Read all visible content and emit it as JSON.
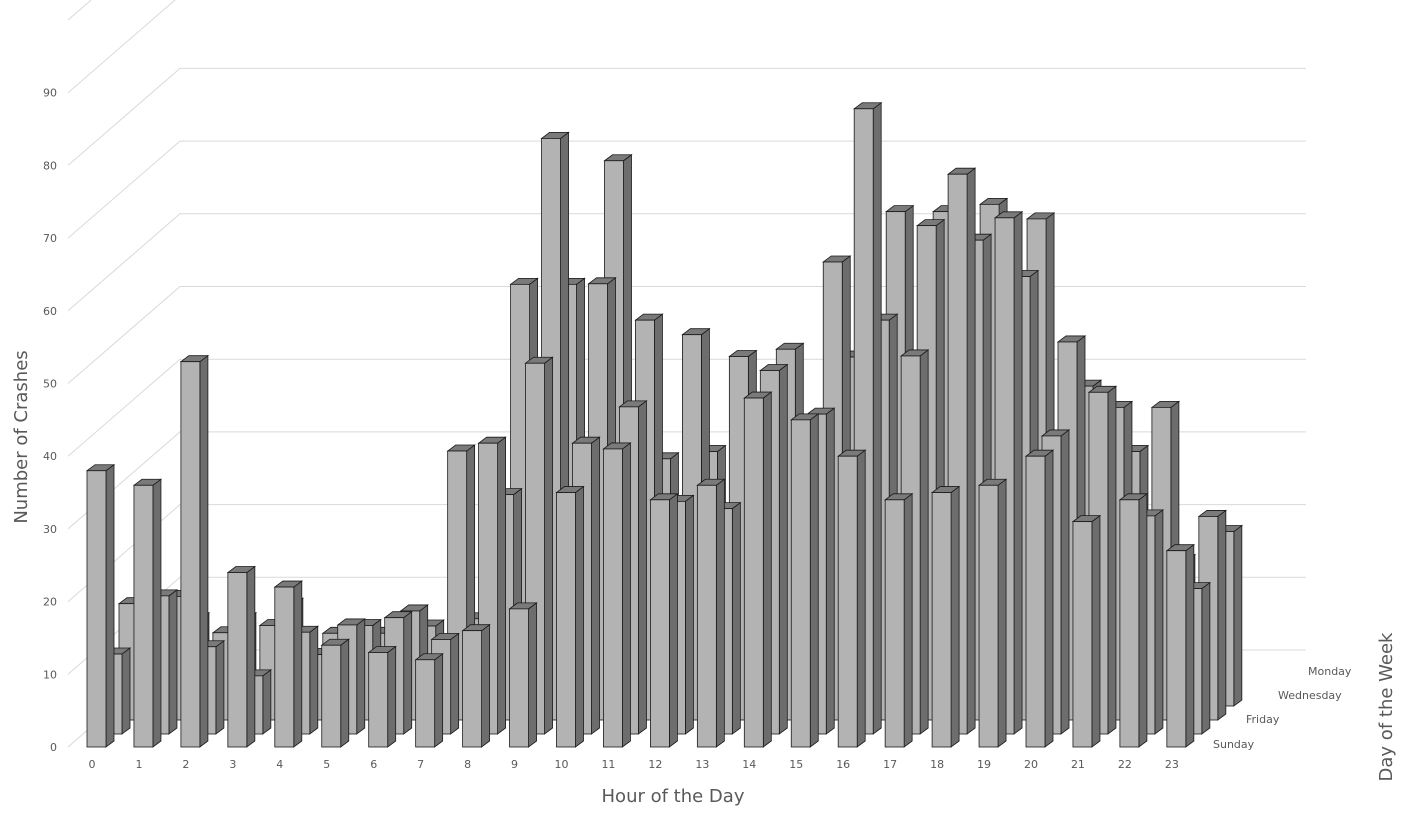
{
  "chart_data": {
    "type": "bar",
    "style": "3d-column",
    "xlabel": "Hour of the Day",
    "ylabel": "Number of Crashes",
    "zlabel": "Day of the Week",
    "categories": [
      "0",
      "1",
      "2",
      "3",
      "4",
      "5",
      "6",
      "7",
      "8",
      "9",
      "10",
      "11",
      "12",
      "13",
      "14",
      "15",
      "16",
      "17",
      "18",
      "19",
      "20",
      "21",
      "22",
      "23"
    ],
    "ytick_labels": [
      "0",
      "10",
      "20",
      "30",
      "40",
      "50",
      "60",
      "70",
      "80",
      "90"
    ],
    "ylim": [
      0,
      100
    ],
    "grid": true,
    "bar_color": "#b3b3b3",
    "gridline_color": "#d9d9d9",
    "label_color": "#595959",
    "series": [
      {
        "name": "Monday",
        "values": [
          10,
          12,
          12,
          14,
          10,
          10,
          11,
          12,
          58,
          58,
          75,
          34,
          35,
          37,
          38,
          48,
          68,
          68,
          69,
          67,
          44,
          35,
          20,
          24
        ]
      },
      {
        "name": "Wednesday",
        "values": [
          16,
          17,
          12,
          13,
          9,
          13,
          15,
          37,
          31,
          80,
          60,
          55,
          53,
          50,
          51,
          63,
          55,
          68,
          66,
          61,
          52,
          43,
          43,
          28
        ]
      },
      {
        "name": "Friday",
        "values": [
          11,
          19,
          12,
          8,
          14,
          15,
          16,
          13,
          40,
          51,
          40,
          45,
          32,
          31,
          50,
          44,
          86,
          52,
          77,
          71,
          41,
          47,
          30,
          20
        ]
      },
      {
        "name": "Sunday",
        "values": [
          38,
          36,
          53,
          24,
          22,
          14,
          13,
          12,
          16,
          19,
          35,
          41,
          34,
          36,
          48,
          45,
          40,
          34,
          35,
          36,
          40,
          31,
          34,
          27
        ]
      }
    ]
  }
}
